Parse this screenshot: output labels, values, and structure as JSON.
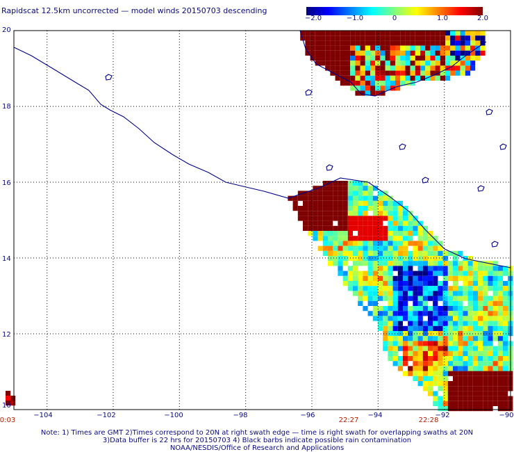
{
  "title": "Rapidscat 12.5km uncorrected — model winds 20150703 descending",
  "colorbar": {
    "colors": [
      "#00007f",
      "#0000ff",
      "#007fff",
      "#00ffff",
      "#7fff7f",
      "#ffff00",
      "#ff7f00",
      "#ff0000",
      "#7f0000"
    ],
    "tick_labels": [
      "−2.0",
      "−1.0",
      "0",
      "1.0",
      "2.0"
    ],
    "range": [
      -2.0,
      2.0
    ]
  },
  "map": {
    "lon_range": [
      -105,
      -90
    ],
    "lat_range": [
      10,
      20
    ],
    "lat_labels": [
      "20",
      "18",
      "16",
      "14",
      "12",
      "10"
    ],
    "lon_labels": [
      "−104",
      "−102",
      "−100",
      "−98",
      "−96",
      "−94",
      "−92",
      "−90"
    ],
    "time_labels": {
      "left": "0:03",
      "mid": "22:27",
      "right": "22:28"
    },
    "coast_color": "#00008b",
    "grid_color": "#000000"
  },
  "notes": [
    "Note: 1) Times are GMT 2)Times correspond to 20N at right swath edge — time is right swath for overlapping swaths at 20N",
    "3)Data buffer is 22 hrs for 20150703 4) Black barbs indicate possible rain contamination",
    "NOAA/NESDIS/Office of Research and Applications"
  ]
}
